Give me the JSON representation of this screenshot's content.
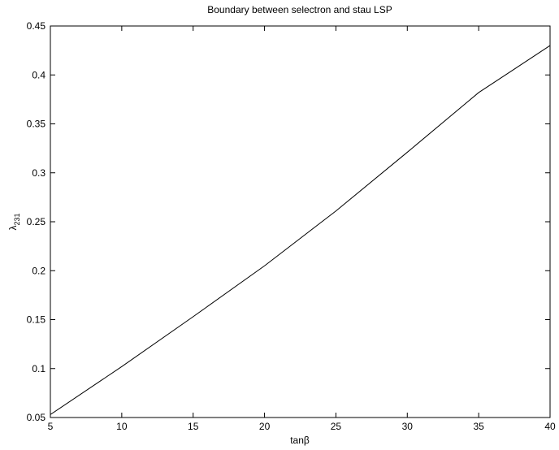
{
  "chart_data": {
    "type": "line",
    "title": "Boundary between selectron and stau LSP",
    "x_label": "tanβ",
    "y_label": [
      "λ",
      "231"
    ],
    "x": [
      5,
      10,
      15,
      20,
      25,
      30,
      35,
      40
    ],
    "series": [
      {
        "color": "#000000",
        "values": [
          0.053,
          0.102,
          0.153,
          0.205,
          0.261,
          0.321,
          0.382,
          0.43
        ]
      }
    ],
    "xlim": [
      5,
      40
    ],
    "xticks": [
      5,
      10,
      15,
      20,
      25,
      30,
      35,
      40
    ],
    "ylim": [
      0.05,
      0.45
    ],
    "yticks": [
      0.05,
      0.1,
      0.15,
      0.2,
      0.25,
      0.3,
      0.35,
      0.4,
      0.45
    ],
    "grid": false
  }
}
